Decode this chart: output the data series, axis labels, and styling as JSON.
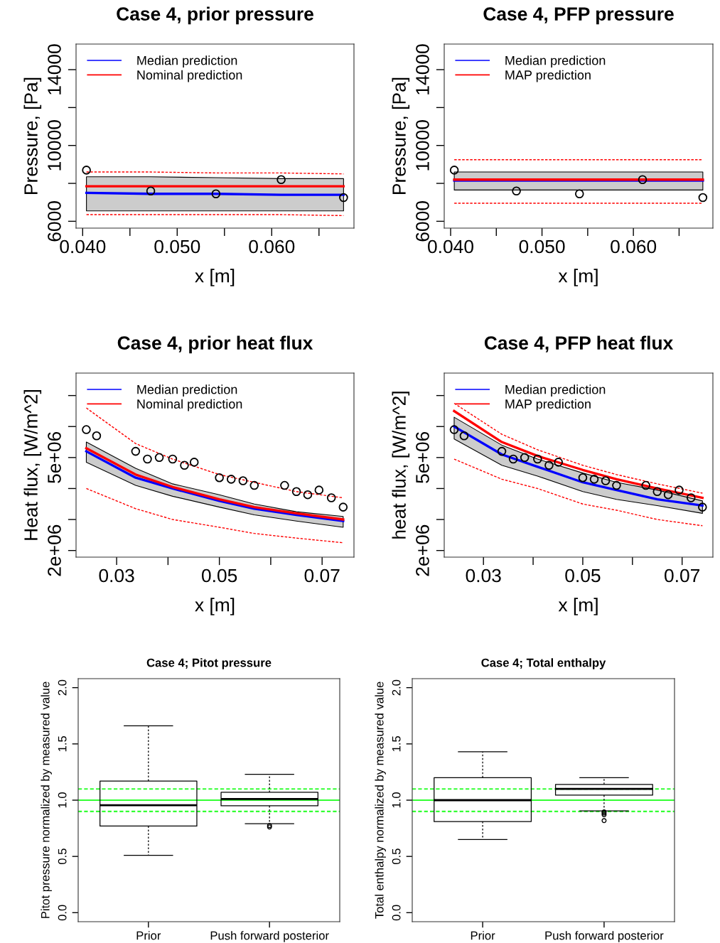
{
  "chart_data": [
    {
      "type": "line",
      "title": "Case 4, prior pressure",
      "xlabel": "x [m]",
      "ylabel": "Pressure, [Pa]",
      "xlim": [
        0.0393,
        0.0687
      ],
      "xticks": [
        {
          "value": 0.04,
          "label": "0.040"
        },
        {
          "value": 0.045,
          "label": null
        },
        {
          "value": 0.05,
          "label": "0.050"
        },
        {
          "value": 0.055,
          "label": null
        },
        {
          "value": 0.06,
          "label": "0.060"
        },
        {
          "value": 0.065,
          "label": null
        }
      ],
      "ylim": [
        5640,
        15350
      ],
      "yticks": [
        6000,
        {
          "value": 8000,
          "label": null
        },
        10000,
        {
          "value": 12000,
          "label": null
        },
        14000
      ],
      "grid": false,
      "legend": "top left",
      "x": [
        0.0404,
        0.0472,
        0.0541,
        0.061,
        0.0676
      ],
      "series": [
        {
          "name": "Median prediction",
          "type": "line",
          "color": "#0000ff",
          "line_style": "solid",
          "marker": "none",
          "values": [
            7500,
            7450,
            7450,
            7400,
            7400
          ],
          "lower": [
            6550,
            6550,
            6550,
            6550,
            6550
          ],
          "upper": [
            8350,
            8350,
            8300,
            8250,
            8250
          ]
        },
        {
          "name": "Nominal prediction",
          "type": "line",
          "color": "#ff0000",
          "line_style": "solid",
          "marker": "none",
          "values": [
            7850,
            7850,
            7850,
            7850,
            7850
          ]
        },
        {
          "type": "line",
          "color": "#ff0000",
          "line_style": "dashed",
          "marker": "none",
          "values": [
            8600,
            8600,
            8550,
            8550,
            8500
          ]
        },
        {
          "type": "line",
          "color": "#ff0000",
          "line_style": "dashed",
          "marker": "none",
          "values": [
            6350,
            6350,
            6350,
            6350,
            6300
          ]
        },
        {
          "type": "scatter",
          "color": "#000000",
          "marker": "circle",
          "values": [
            8700,
            7600,
            7450,
            8200,
            7250
          ]
        }
      ]
    },
    {
      "type": "line",
      "title": "Case 4, PFP pressure",
      "xlabel": "x [m]",
      "ylabel": "Pressure, [Pa]",
      "xlim": [
        0.0393,
        0.0687
      ],
      "xticks": [
        {
          "value": 0.04,
          "label": "0.040"
        },
        {
          "value": 0.045,
          "label": null
        },
        {
          "value": 0.05,
          "label": "0.050"
        },
        {
          "value": 0.055,
          "label": null
        },
        {
          "value": 0.06,
          "label": "0.060"
        },
        {
          "value": 0.065,
          "label": null
        }
      ],
      "ylim": [
        5640,
        15350
      ],
      "yticks": [
        6000,
        {
          "value": 8000,
          "label": null
        },
        10000,
        {
          "value": 12000,
          "label": null
        },
        14000
      ],
      "grid": false,
      "legend": "top left",
      "x": [
        0.0404,
        0.0472,
        0.0541,
        0.061,
        0.0676
      ],
      "series": [
        {
          "name": "Median prediction",
          "type": "line",
          "color": "#0000ff",
          "line_style": "solid",
          "marker": "none",
          "values": [
            8150,
            8150,
            8150,
            8150,
            8150
          ],
          "lower": [
            7650,
            7650,
            7650,
            7650,
            7650
          ],
          "upper": [
            8600,
            8600,
            8600,
            8600,
            8600
          ]
        },
        {
          "name": "MAP prediction",
          "type": "line",
          "color": "#ff0000",
          "line_style": "solid",
          "marker": "none",
          "values": [
            8200,
            8200,
            8200,
            8200,
            8200
          ]
        },
        {
          "type": "line",
          "color": "#ff0000",
          "line_style": "dashed",
          "marker": "none",
          "values": [
            9250,
            9250,
            9250,
            9250,
            9250
          ]
        },
        {
          "type": "line",
          "color": "#ff0000",
          "line_style": "dashed",
          "marker": "none",
          "values": [
            6950,
            6950,
            6950,
            6950,
            6950
          ]
        },
        {
          "type": "scatter",
          "color": "#000000",
          "marker": "circle",
          "values": [
            8700,
            7600,
            7450,
            8200,
            7250
          ]
        }
      ]
    },
    {
      "type": "line",
      "title": "Case 4, prior heat flux",
      "xlabel": "x [m]",
      "ylabel": "Heat flux, [W/m^2]",
      "xlim": [
        0.0221,
        0.0762
      ],
      "xticks": [
        0.03,
        {
          "value": 0.04,
          "label": null
        },
        0.05,
        {
          "value": 0.06,
          "label": null
        },
        0.07
      ],
      "ylim": [
        1786000,
        7725000
      ],
      "yticks": [
        {
          "value": 2000000,
          "label": "2e+06"
        },
        {
          "value": 3000000,
          "label": null
        },
        {
          "value": 4000000,
          "label": null
        },
        {
          "value": 5000000,
          "label": "5e+06"
        },
        {
          "value": 6000000,
          "label": null
        },
        {
          "value": 7000000,
          "label": null
        }
      ],
      "grid": false,
      "legend": "top left",
      "x": [
        0.0241,
        0.0337,
        0.0409,
        0.05,
        0.0568,
        0.065,
        0.0741
      ],
      "series": [
        {
          "name": "Median prediction",
          "type": "line",
          "color": "#0000ff",
          "line_style": "solid",
          "marker": "none",
          "values": [
            5200000,
            4350000,
            4000000,
            3600000,
            3350000,
            3150000,
            2950000
          ],
          "lower": [
            4850000,
            4100000,
            3750000,
            3400000,
            3150000,
            2950000,
            2750000
          ],
          "upper": [
            5500000,
            4650000,
            4150000,
            3800000,
            3500000,
            3250000,
            3100000
          ]
        },
        {
          "name": "Nominal prediction",
          "type": "line",
          "color": "#ff0000",
          "line_style": "solid",
          "marker": "none",
          "values": [
            5300000,
            4450000,
            4050000,
            3650000,
            3400000,
            3200000,
            3000000
          ]
        },
        {
          "type": "line",
          "color": "#ff0000",
          "line_style": "dashed",
          "marker": "none",
          "values": [
            6600000,
            5450000,
            4950000,
            4450000,
            4200000,
            3900000,
            3700000
          ]
        },
        {
          "type": "line",
          "color": "#ff0000",
          "line_style": "dashed",
          "marker": "none",
          "values": [
            4000000,
            3350000,
            3000000,
            2750000,
            2550000,
            2400000,
            2250000
          ]
        },
        {
          "type": "scatter",
          "color": "#000000",
          "marker": "circle",
          "x": [
            0.0241,
            0.0261,
            0.0337,
            0.036,
            0.0383,
            0.0409,
            0.0432,
            0.0451,
            0.05,
            0.0523,
            0.0546,
            0.0568,
            0.0627,
            0.065,
            0.0672,
            0.0694,
            0.0718,
            0.0741
          ],
          "values": [
            5900000,
            5700000,
            5200000,
            4950000,
            5000000,
            4950000,
            4750000,
            4850000,
            4350000,
            4300000,
            4250000,
            4100000,
            4100000,
            3900000,
            3800000,
            3950000,
            3700000,
            3400000
          ]
        }
      ]
    },
    {
      "type": "line",
      "title": "Case 4, PFP heat flux",
      "xlabel": "x [m]",
      "ylabel": "heat flux, [W/m^2]",
      "xlim": [
        0.0221,
        0.0762
      ],
      "xticks": [
        0.03,
        {
          "value": 0.04,
          "label": null
        },
        0.05,
        {
          "value": 0.06,
          "label": null
        },
        0.07
      ],
      "ylim": [
        1786000,
        7725000
      ],
      "yticks": [
        {
          "value": 2000000,
          "label": "2e+06"
        },
        {
          "value": 3000000,
          "label": null
        },
        {
          "value": 4000000,
          "label": null
        },
        {
          "value": 5000000,
          "label": "5e+06"
        },
        {
          "value": 6000000,
          "label": null
        },
        {
          "value": 7000000,
          "label": null
        }
      ],
      "grid": false,
      "legend": "top left",
      "x": [
        0.0241,
        0.0337,
        0.0409,
        0.05,
        0.0568,
        0.065,
        0.0741
      ],
      "series": [
        {
          "name": "Median prediction",
          "type": "line",
          "color": "#0000ff",
          "line_style": "solid",
          "marker": "none",
          "values": [
            6000000,
            5100000,
            4700000,
            4200000,
            3950000,
            3650000,
            3450000
          ],
          "lower": [
            5600000,
            4750000,
            4400000,
            3900000,
            3650000,
            3450000,
            3200000
          ],
          "upper": [
            6300000,
            5400000,
            4950000,
            4500000,
            4200000,
            3950000,
            3600000
          ]
        },
        {
          "name": "MAP prediction",
          "type": "line",
          "color": "#ff0000",
          "line_style": "solid",
          "marker": "none",
          "values": [
            6500000,
            5500000,
            5050000,
            4600000,
            4300000,
            4000000,
            3700000
          ]
        },
        {
          "type": "line",
          "color": "#ff0000",
          "line_style": "dashed",
          "marker": "none",
          "values": [
            6750000,
            5750000,
            5250000,
            4750000,
            4450000,
            4150000,
            3850000
          ]
        },
        {
          "type": "line",
          "color": "#ff0000",
          "line_style": "dashed",
          "marker": "none",
          "values": [
            4950000,
            4300000,
            4000000,
            3500000,
            3300000,
            3000000,
            2800000
          ]
        },
        {
          "type": "scatter",
          "color": "#000000",
          "marker": "circle",
          "x": [
            0.0241,
            0.0261,
            0.0337,
            0.036,
            0.0383,
            0.0409,
            0.0432,
            0.0451,
            0.05,
            0.0523,
            0.0546,
            0.0568,
            0.0627,
            0.065,
            0.0672,
            0.0694,
            0.0718,
            0.0741
          ],
          "values": [
            5900000,
            5700000,
            5200000,
            4950000,
            5000000,
            4950000,
            4750000,
            4850000,
            4350000,
            4300000,
            4250000,
            4100000,
            4100000,
            3900000,
            3800000,
            3950000,
            3700000,
            3400000
          ]
        }
      ]
    },
    {
      "type": "box",
      "title": "Case 4; Pitot pressure",
      "ylabel": "Pitot pressure normalized by measured value",
      "categories": [
        "Prior",
        "Push forward posterior"
      ],
      "ylim": [
        -0.08,
        2.08
      ],
      "yticks": [
        {
          "value": 0,
          "label": "0.0"
        },
        0.5,
        {
          "value": 1,
          "label": "1.0"
        },
        1.5,
        {
          "value": 2,
          "label": "2.0"
        }
      ],
      "grid": false,
      "boxes": [
        {
          "low": 0.51,
          "q1": 0.77,
          "median": 0.955,
          "q3": 1.17,
          "high": 1.66
        },
        {
          "low": 0.79,
          "q1": 0.95,
          "median": 1.01,
          "q3": 1.07,
          "high": 1.23,
          "outliers": [
            0.774,
            0.762
          ]
        }
      ],
      "ref_lines": [
        {
          "axis": "y",
          "value": 1,
          "color": "#33ff33",
          "line_style": "solid"
        },
        {
          "axis": "y",
          "value": 1.1,
          "color": "#33ff33",
          "line_style": "dashed"
        },
        {
          "axis": "y",
          "value": 0.9,
          "color": "#33ff33",
          "line_style": "dashed"
        }
      ]
    },
    {
      "type": "box",
      "title": "Case 4; Total enthalpy",
      "ylabel": "Total enthalpy normalized by measured value",
      "categories": [
        "Prior",
        "Push forward posterior"
      ],
      "ylim": [
        -0.08,
        2.08
      ],
      "yticks": [
        {
          "value": 0,
          "label": "0.0"
        },
        0.5,
        {
          "value": 1,
          "label": "1.0"
        },
        1.5,
        {
          "value": 2,
          "label": "2.0"
        }
      ],
      "grid": false,
      "boxes": [
        {
          "low": 0.65,
          "q1": 0.81,
          "median": 1.0,
          "q3": 1.2,
          "high": 1.43
        },
        {
          "low": 0.905,
          "q1": 1.045,
          "median": 1.1,
          "q3": 1.14,
          "high": 1.2,
          "outliers": [
            0.896,
            0.884,
            0.871,
            0.818
          ]
        }
      ],
      "ref_lines": [
        {
          "axis": "y",
          "value": 1,
          "color": "#33ff33",
          "line_style": "solid"
        },
        {
          "axis": "y",
          "value": 1.1,
          "color": "#33ff33",
          "line_style": "dashed"
        },
        {
          "axis": "y",
          "value": 0.9,
          "color": "#33ff33",
          "line_style": "dashed"
        }
      ]
    }
  ]
}
